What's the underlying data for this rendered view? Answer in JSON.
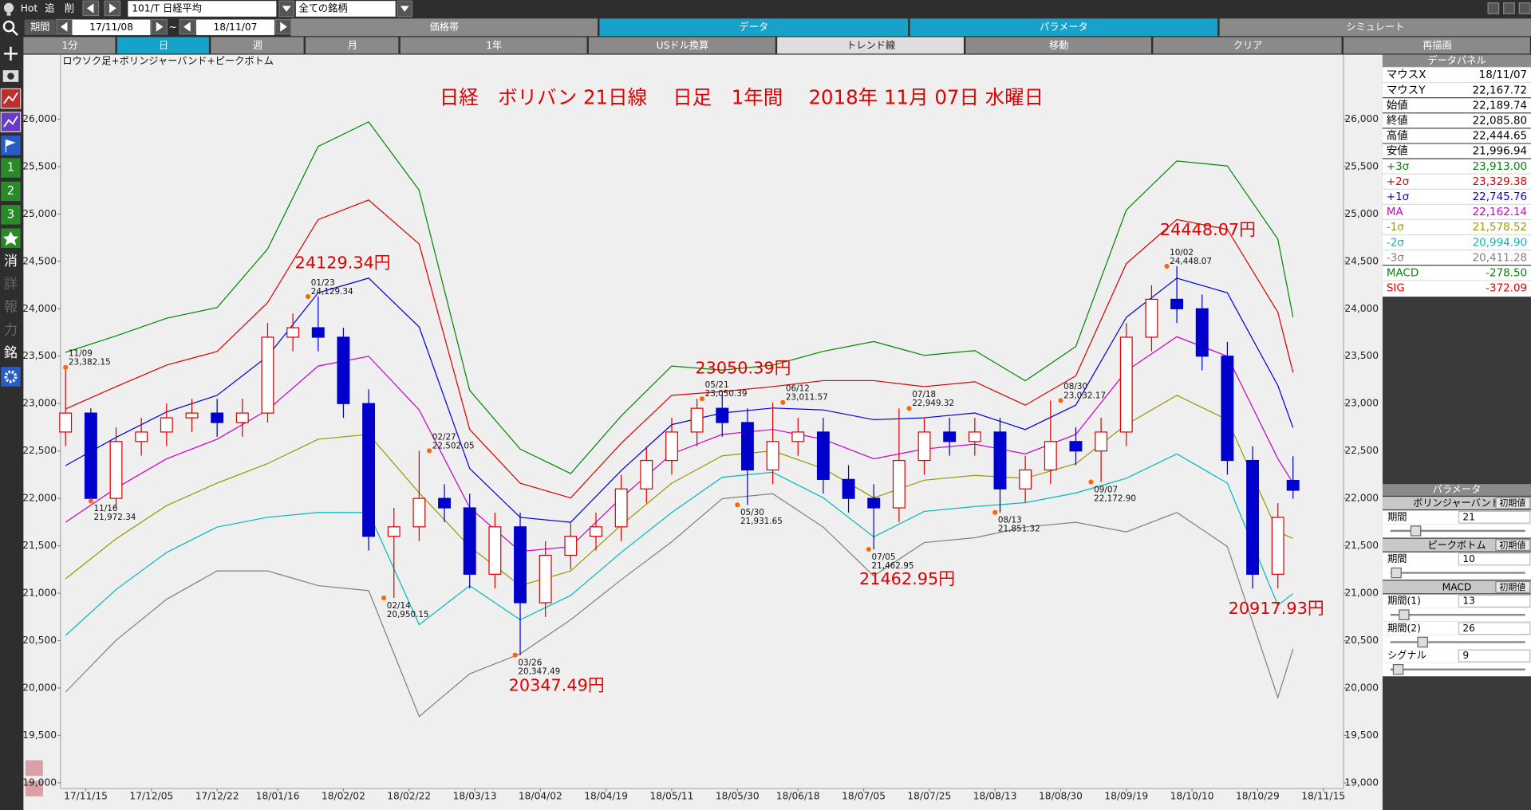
{
  "toolbar": {
    "hot": "Hot",
    "add": "追",
    "del": "削",
    "symbol": "101/T 日経平均",
    "universe": "全ての銘柄",
    "period_label": "期間",
    "from": "17/11/08",
    "tilde": "~",
    "to": "18/11/07",
    "tabs": [
      "価格帯",
      "データ",
      "パラメータ",
      "シミュレート"
    ],
    "buttons": [
      "1分",
      "日",
      "週",
      "月",
      "1年",
      "USドル換算",
      "トレンド線",
      "移動",
      "クリア",
      "再描画"
    ]
  },
  "sidebar": {
    "numbers": [
      "1",
      "2",
      "3"
    ],
    "chars": [
      "消",
      "詳",
      "報",
      "力",
      "銘"
    ]
  },
  "chart_data": {
    "type": "candlestick",
    "title": "日経　ボリバン 21日線　 日足　1年間　 2018年 11月 07日 水曜日",
    "subtitle": "ロウソク足+ボリンジャーバンド+ピークボトム",
    "title_color": "#e00000",
    "xlim": [
      -1,
      253
    ],
    "xticks": [
      {
        "value": 4,
        "label": "17/11/15"
      },
      {
        "value": 17,
        "label": "17/12/05"
      },
      {
        "value": 30,
        "label": "17/12/22"
      },
      {
        "value": 42,
        "label": "18/01/16"
      },
      {
        "value": 55,
        "label": "18/02/02"
      },
      {
        "value": 68,
        "label": "18/02/22"
      },
      {
        "value": 81,
        "label": "18/03/13"
      },
      {
        "value": 94,
        "label": "18/04/02"
      },
      {
        "value": 107,
        "label": "18/04/19"
      },
      {
        "value": 120,
        "label": "18/05/11"
      },
      {
        "value": 133,
        "label": "18/05/30"
      },
      {
        "value": 145,
        "label": "18/06/18"
      },
      {
        "value": 158,
        "label": "18/07/05"
      },
      {
        "value": 171,
        "label": "18/07/25"
      },
      {
        "value": 184,
        "label": "18/08/13"
      },
      {
        "value": 197,
        "label": "18/08/30"
      },
      {
        "value": 210,
        "label": "18/09/19"
      },
      {
        "value": 223,
        "label": "18/10/10"
      },
      {
        "value": 236,
        "label": "18/10/29"
      },
      {
        "value": 249,
        "label": "18/11/15"
      }
    ],
    "ylim": [
      18940,
      26680
    ],
    "yticks": [
      {
        "value": 19000,
        "label": "19,000"
      },
      {
        "value": 19500,
        "label": "19,500"
      },
      {
        "value": 20000,
        "label": "20,000"
      },
      {
        "value": 20500,
        "label": "20,500"
      },
      {
        "value": 21000,
        "label": "21,000"
      },
      {
        "value": 21500,
        "label": "21,500"
      },
      {
        "value": 22000,
        "label": "22,000"
      },
      {
        "value": 22500,
        "label": "22,500"
      },
      {
        "value": 23000,
        "label": "23,000"
      },
      {
        "value": 23500,
        "label": "23,500"
      },
      {
        "value": 24000,
        "label": "24,000"
      },
      {
        "value": 24500,
        "label": "24,500"
      },
      {
        "value": 25000,
        "label": "25,000"
      },
      {
        "value": 25500,
        "label": "25,500"
      },
      {
        "value": 26000,
        "label": "26,000"
      }
    ],
    "candles": {
      "up_color": "#e00000",
      "down_color": "#0000cc",
      "x": [
        0,
        5,
        10,
        15,
        20,
        25,
        30,
        35,
        40,
        45,
        50,
        55,
        60,
        65,
        70,
        75,
        80,
        85,
        90,
        95,
        100,
        105,
        110,
        115,
        120,
        125,
        130,
        135,
        140,
        145,
        150,
        155,
        160,
        165,
        170,
        175,
        180,
        185,
        190,
        195,
        200,
        205,
        210,
        215,
        220,
        225,
        230,
        235,
        240,
        243
      ],
      "open": [
        22700,
        22900,
        22000,
        22600,
        22700,
        22850,
        22900,
        22800,
        22900,
        23700,
        23800,
        23700,
        23000,
        21600,
        21700,
        22000,
        21900,
        21200,
        21700,
        20900,
        21400,
        21600,
        21700,
        22100,
        22400,
        22700,
        22950,
        22800,
        22300,
        22600,
        22700,
        22200,
        22000,
        21900,
        22400,
        22700,
        22600,
        22700,
        22100,
        22300,
        22600,
        22500,
        22700,
        23700,
        24100,
        24000,
        23500,
        22400,
        21200,
        22189.74
      ],
      "high": [
        23382,
        22950,
        22750,
        22850,
        23000,
        23050,
        23050,
        23050,
        23850,
        23950,
        24129,
        23800,
        23150,
        21900,
        22502,
        22150,
        22050,
        21850,
        21850,
        21550,
        21750,
        21850,
        22250,
        22550,
        22850,
        23050,
        23100,
        22950,
        23011,
        22850,
        22850,
        22350,
        22150,
        22949,
        22850,
        22850,
        22850,
        22850,
        22450,
        23032,
        22750,
        22850,
        23850,
        24250,
        24448,
        24150,
        23650,
        22550,
        21950,
        22444.65
      ],
      "low": [
        22550,
        21972,
        21900,
        22450,
        22550,
        22700,
        22650,
        22650,
        22800,
        23550,
        23550,
        22850,
        21450,
        20950,
        21550,
        21750,
        21050,
        21050,
        20347,
        20750,
        21250,
        21450,
        21550,
        21950,
        22250,
        22550,
        22650,
        21931,
        22150,
        22450,
        22050,
        21850,
        21462,
        21750,
        22250,
        22450,
        22450,
        21851,
        21950,
        22150,
        22350,
        22173,
        22550,
        23550,
        23850,
        23350,
        22250,
        21050,
        21050,
        21996.94
      ],
      "close": [
        22900,
        22000,
        22600,
        22700,
        22850,
        22900,
        22800,
        22900,
        23700,
        23800,
        23700,
        23000,
        21600,
        21700,
        22000,
        21900,
        21200,
        21700,
        20900,
        21400,
        21600,
        21700,
        22100,
        22400,
        22700,
        22950,
        22800,
        22300,
        22600,
        22700,
        22200,
        22000,
        21900,
        22400,
        22700,
        22600,
        22700,
        22100,
        22300,
        22600,
        22500,
        22700,
        23700,
        24100,
        24000,
        23500,
        22400,
        21200,
        21800,
        22085.8
      ]
    },
    "band_x": [
      0,
      10,
      20,
      30,
      40,
      50,
      60,
      70,
      80,
      90,
      100,
      110,
      120,
      130,
      140,
      150,
      160,
      170,
      180,
      190,
      200,
      210,
      220,
      230,
      240,
      243
    ],
    "series": [
      {
        "name": "+3σ",
        "color": "#008800",
        "values": [
          23540,
          23714,
          23900,
          24013,
          24631,
          25712,
          25971,
          25250,
          23139,
          22520,
          22262,
          22870,
          23396,
          23353,
          23405,
          23551,
          23654,
          23508,
          23559,
          23240,
          23602,
          25042,
          25559,
          25506,
          24734,
          23913
        ]
      },
      {
        "name": "+2σ",
        "color": "#dd0000",
        "values": [
          22943,
          23179,
          23406,
          23550,
          24065,
          24940,
          25147,
          24683,
          22727,
          22160,
          22005,
          22582,
          23087,
          23127,
          23179,
          23242,
          23242,
          23179,
          23230,
          22983,
          23293,
          24476,
          24941,
          24837,
          23962,
          23329.38
        ]
      },
      {
        "name": "+1σ",
        "color": "#0000dd",
        "values": [
          22346,
          22644,
          22912,
          23087,
          23499,
          24168,
          24323,
          23808,
          22315,
          21800,
          21748,
          22294,
          22778,
          22901,
          22953,
          22933,
          22830,
          22850,
          22901,
          22726,
          22984,
          23910,
          24323,
          24168,
          23190,
          22745.76
        ]
      },
      {
        "name": "MA",
        "color": "#cc00cc",
        "values": [
          21749,
          22109,
          22418,
          22624,
          22933,
          23396,
          23499,
          22933,
          21903,
          21440,
          21491,
          22006,
          22469,
          22675,
          22727,
          22624,
          22418,
          22521,
          22572,
          22469,
          22675,
          23344,
          23705,
          23499,
          22418,
          22162.14
        ]
      },
      {
        "name": "-1σ",
        "color": "#999900",
        "values": [
          21152,
          21574,
          21924,
          22161,
          22367,
          22624,
          22675,
          22058,
          21491,
          21080,
          21234,
          21718,
          22160,
          22449,
          22501,
          22315,
          22006,
          22192,
          22243,
          22212,
          22366,
          22778,
          23087,
          22830,
          21646,
          21578.52
        ]
      },
      {
        "name": "-2σ",
        "color": "#00bbbb",
        "values": [
          20555,
          21039,
          21430,
          21698,
          21801,
          21852,
          21851,
          20668,
          21079,
          20720,
          20977,
          21430,
          21851,
          22223,
          22275,
          22006,
          21594,
          21863,
          21914,
          21955,
          22057,
          22212,
          22469,
          22161,
          20874,
          20994.9
        ]
      },
      {
        "name": "-3σ",
        "color": "#808080",
        "values": [
          19958,
          20504,
          20936,
          21235,
          21235,
          21080,
          21027,
          19700,
          20150,
          20360,
          20720,
          21142,
          21542,
          21997,
          22049,
          21697,
          21182,
          21534,
          21585,
          21698,
          21748,
          21646,
          21851,
          21492,
          19900,
          20411.28
        ]
      }
    ],
    "peaks": {
      "color": "#ff6600",
      "x": [
        0,
        5,
        48,
        63,
        72,
        89,
        126,
        133,
        142,
        159,
        167,
        184,
        197,
        203,
        218
      ],
      "values": [
        23382.15,
        21972.34,
        24129.34,
        20950.15,
        22502.05,
        20347.49,
        23050.39,
        21931.65,
        23011.57,
        21462.95,
        22949.32,
        21851.32,
        23032.17,
        22172.9,
        24448.07
      ],
      "value_labels": [
        "23,382.15",
        "21,972.34",
        "24,129.34",
        "20,950.15",
        "22,502.05",
        "20,347.49",
        "23,050.39",
        "21,931.65",
        "23,011.57",
        "21,462.95",
        "22,949.32",
        "21,851.32",
        "23,032.17",
        "22,172.90",
        "24,448.07"
      ],
      "dates": [
        "11/09",
        "11/16",
        "01/23",
        "02/14",
        "02/27",
        "03/26",
        "05/21",
        "05/30",
        "06/12",
        "07/05",
        "07/18",
        "08/13",
        "08/30",
        "09/07",
        "10/02"
      ]
    },
    "annotations": [
      "24129.34円",
      "23050.39円",
      "20347.49円",
      "21462.95円",
      "24448.07円",
      "20917.93円"
    ]
  },
  "data_panel": {
    "title": "データパネル",
    "rows": [
      [
        "マウスX",
        "18/11/07"
      ],
      [
        "マウスY",
        "22,167.72"
      ],
      [
        "始値",
        "22,189.74"
      ],
      [
        "終値",
        "22,085.80"
      ],
      [
        "高値",
        "22,444.65"
      ],
      [
        "安値",
        "21,996.94"
      ]
    ],
    "band_values": [
      "23,913.00",
      "23,329.38",
      "22,745.76",
      "22,162.14",
      "21,578.52",
      "20,994.90",
      "20,411.28"
    ],
    "macd": [
      [
        "MACD",
        "-278.50"
      ],
      [
        "SIG",
        "-372.09"
      ]
    ]
  },
  "param_panel": {
    "title": "パラメータ",
    "groups": [
      {
        "name": "ボリンジャーバンド",
        "reset": "初期値",
        "items": [
          [
            "期間",
            "21"
          ]
        ]
      },
      {
        "name": "ピークボトム",
        "reset": "初期値",
        "items": [
          [
            "期間",
            "10"
          ]
        ]
      },
      {
        "name": "MACD",
        "reset": "初期値",
        "items": [
          [
            "期間(1)",
            "13"
          ],
          [
            "期間(2)",
            "26"
          ],
          [
            "シグナル",
            "9"
          ]
        ]
      }
    ]
  }
}
